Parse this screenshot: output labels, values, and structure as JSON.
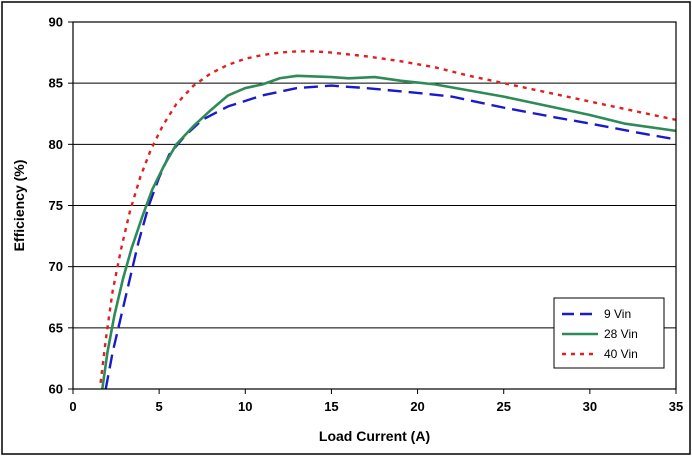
{
  "chart_data": {
    "type": "line",
    "title": "",
    "xlabel": "Load Current (A)",
    "ylabel": "Efficiency (%)",
    "xlim": [
      0,
      35
    ],
    "ylim": [
      60,
      90
    ],
    "x_ticks": [
      0,
      5,
      10,
      15,
      20,
      25,
      30,
      35
    ],
    "y_ticks": [
      60,
      65,
      70,
      75,
      80,
      85,
      90
    ],
    "grid": "horizontal",
    "legend_position": "bottom-right",
    "series": [
      {
        "name": "9 Vin",
        "color": "#1a1acc",
        "style": "dashed",
        "points": [
          [
            1.9,
            60
          ],
          [
            2.3,
            63
          ],
          [
            2.8,
            66
          ],
          [
            3.3,
            69
          ],
          [
            3.8,
            72
          ],
          [
            4.4,
            75
          ],
          [
            5.0,
            77.3
          ],
          [
            5.6,
            79.2
          ],
          [
            6.5,
            80.7
          ],
          [
            7.5,
            82
          ],
          [
            9,
            83.1
          ],
          [
            11,
            84
          ],
          [
            13,
            84.6
          ],
          [
            15,
            84.8
          ],
          [
            17,
            84.6
          ],
          [
            20,
            84.2
          ],
          [
            22,
            83.9
          ],
          [
            25,
            83
          ],
          [
            28,
            82.2
          ],
          [
            30,
            81.7
          ],
          [
            33,
            80.9
          ],
          [
            35,
            80.4
          ]
        ]
      },
      {
        "name": "28 Vin",
        "color": "#2e8b57",
        "style": "solid",
        "points": [
          [
            1.7,
            60
          ],
          [
            2.0,
            63
          ],
          [
            2.4,
            66
          ],
          [
            2.9,
            69
          ],
          [
            3.4,
            71.5
          ],
          [
            4.0,
            74
          ],
          [
            4.6,
            76.3
          ],
          [
            5.3,
            78.3
          ],
          [
            6.0,
            80
          ],
          [
            7.0,
            81.5
          ],
          [
            8,
            82.8
          ],
          [
            9,
            84
          ],
          [
            10,
            84.6
          ],
          [
            11,
            84.9
          ],
          [
            12,
            85.4
          ],
          [
            13,
            85.6
          ],
          [
            15,
            85.5
          ],
          [
            16,
            85.4
          ],
          [
            17.5,
            85.5
          ],
          [
            19,
            85.2
          ],
          [
            21,
            84.9
          ],
          [
            23,
            84.4
          ],
          [
            25,
            83.9
          ],
          [
            28,
            83
          ],
          [
            30,
            82.4
          ],
          [
            32,
            81.7
          ],
          [
            35,
            81.1
          ]
        ]
      },
      {
        "name": "40 Vin",
        "color": "#e02020",
        "style": "dotted",
        "points": [
          [
            1.6,
            60.5
          ],
          [
            1.9,
            64
          ],
          [
            2.3,
            68
          ],
          [
            2.8,
            71.5
          ],
          [
            3.3,
            74.5
          ],
          [
            3.9,
            77.3
          ],
          [
            4.5,
            79.5
          ],
          [
            5.2,
            81.5
          ],
          [
            6.0,
            83.3
          ],
          [
            7.0,
            84.8
          ],
          [
            8,
            85.8
          ],
          [
            9,
            86.5
          ],
          [
            10,
            87
          ],
          [
            11,
            87.3
          ],
          [
            12,
            87.5
          ],
          [
            13,
            87.6
          ],
          [
            14,
            87.6
          ],
          [
            15,
            87.5
          ],
          [
            17,
            87.2
          ],
          [
            19,
            86.8
          ],
          [
            21,
            86.3
          ],
          [
            23,
            85.6
          ],
          [
            25,
            85
          ],
          [
            27,
            84.4
          ],
          [
            30,
            83.5
          ],
          [
            32,
            82.9
          ],
          [
            35,
            82
          ]
        ]
      }
    ]
  }
}
